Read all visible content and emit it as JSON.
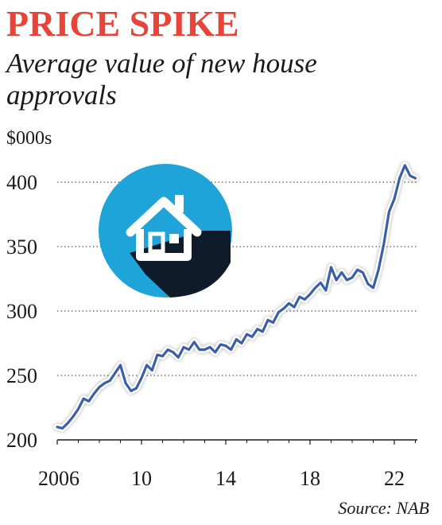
{
  "chart_data": {
    "type": "line",
    "title": "PRICE SPIKE",
    "subtitle": "Average value of new house approvals",
    "ylabel": "$000s",
    "source": "Source: NAB",
    "y_ticks": [
      "200",
      "250",
      "300",
      "350",
      "400"
    ],
    "x_ticks": [
      {
        "x": 2006,
        "label": "2006"
      },
      {
        "x": 2010,
        "label": "10"
      },
      {
        "x": 2014,
        "label": "14"
      },
      {
        "x": 2018,
        "label": "18"
      },
      {
        "x": 2022,
        "label": "22"
      }
    ],
    "xlim": [
      2006,
      2023.5
    ],
    "ylim": [
      200,
      420
    ],
    "grid": "horizontal dotted",
    "colors": {
      "line": "#3a5fa8",
      "title": "#e8443a",
      "icon_circle": "#1ea4d8",
      "icon_shadow": "#0d1b2a"
    },
    "icon": "house-icon",
    "series": [
      {
        "x": [
          2006.0,
          2006.25,
          2006.5,
          2006.75,
          2007.0,
          2007.25,
          2007.5,
          2007.75,
          2008.0,
          2008.25,
          2008.5,
          2008.75,
          2009.0,
          2009.25,
          2009.5,
          2009.75,
          2010.0,
          2010.25,
          2010.5,
          2010.75,
          2011.0,
          2011.25,
          2011.5,
          2011.75,
          2012.0,
          2012.25,
          2012.5,
          2012.75,
          2013.0,
          2013.25,
          2013.5,
          2013.75,
          2014.0,
          2014.25,
          2014.5,
          2014.75,
          2015.0,
          2015.25,
          2015.5,
          2015.75,
          2016.0,
          2016.25,
          2016.5,
          2016.75,
          2017.0,
          2017.25,
          2017.5,
          2017.75,
          2018.0,
          2018.25,
          2018.5,
          2018.75,
          2019.0,
          2019.25,
          2019.5,
          2019.75,
          2020.0,
          2020.25,
          2020.5,
          2020.75,
          2021.0,
          2021.25,
          2021.5,
          2021.75,
          2022.0,
          2022.25,
          2022.5,
          2022.75,
          2023.0
        ],
        "values": [
          210,
          209,
          213,
          218,
          224,
          232,
          230,
          236,
          241,
          244,
          246,
          252,
          258,
          244,
          238,
          240,
          248,
          258,
          254,
          266,
          265,
          270,
          268,
          264,
          272,
          270,
          276,
          270,
          270,
          272,
          268,
          274,
          273,
          270,
          278,
          275,
          282,
          280,
          286,
          284,
          293,
          291,
          299,
          302,
          306,
          303,
          311,
          309,
          313,
          318,
          322,
          316,
          334,
          324,
          330,
          324,
          326,
          332,
          330,
          321,
          318,
          332,
          352,
          377,
          387,
          403,
          413,
          405,
          403
        ]
      }
    ]
  }
}
